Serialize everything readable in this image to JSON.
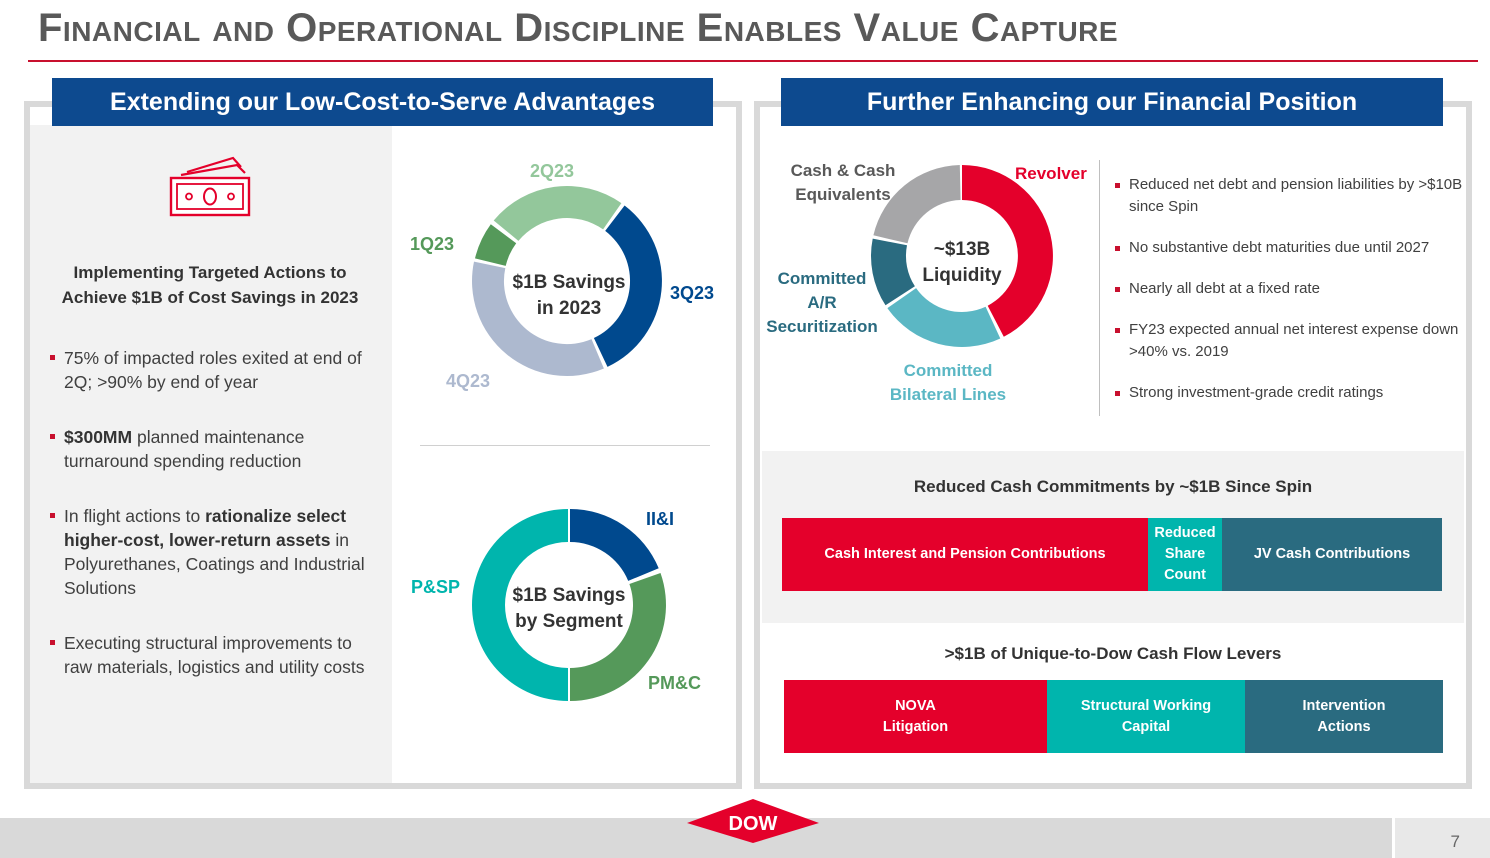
{
  "title": "Financial and Operational Discipline Enables Value Capture",
  "colors": {
    "red": "#e4002b",
    "teal": "#00b5ad",
    "darkTeal": "#2a6b80",
    "navy": "#0d4a8f",
    "lightGreen": "#93c79b",
    "green": "#55995a",
    "grayBlue": "#adb9cf",
    "gray": "#a6a6a8",
    "blue": "#00498e"
  },
  "left": {
    "header": "Extending our Low-Cost-to-Serve Advantages",
    "icon": "money-icon",
    "heading_line1": "Implementing Targeted Actions to",
    "heading_line2": "Achieve $1B of Cost Savings in 2023",
    "bullets": [
      {
        "pre": "75% of impacted roles exited at end of 2Q; >90% by end of year",
        "bold": "",
        "post": ""
      },
      {
        "pre": "",
        "bold": "$300MM",
        "post": " planned maintenance turnaround spending reduction"
      },
      {
        "pre": "In flight actions to ",
        "bold": "rationalize select higher-cost, lower-return assets",
        "post": " in Polyurethanes, Coatings and Industrial Solutions"
      },
      {
        "pre": "Executing structural improvements to raw materials, logistics and utility costs",
        "bold": "",
        "post": ""
      }
    ],
    "donut1": {
      "center_line1": "$1B Savings",
      "center_line2": "in 2023",
      "labels": {
        "q1": "1Q23",
        "q2": "2Q23",
        "q3": "3Q23",
        "q4": "4Q23"
      }
    },
    "donut2": {
      "center_line1": "$1B Savings",
      "center_line2": "by Segment",
      "labels": {
        "ii": "II&I",
        "pmc": "PM&C",
        "psp": "P&SP"
      }
    }
  },
  "right": {
    "header": "Further Enhancing our Financial Position",
    "donut": {
      "center_line1": "~$13B",
      "center_line2": "Liquidity",
      "labels": {
        "revolver": "Revolver",
        "cash1": "Cash & Cash",
        "cash2": "Equivalents",
        "ar1": "Committed",
        "ar2": "A/R",
        "ar3": "Securitization",
        "bl1": "Committed",
        "bl2": "Bilateral Lines"
      }
    },
    "bullets": [
      "Reduced net debt and pension liabilities by >$10B since Spin",
      "No substantive debt maturities due until 2027",
      "Nearly all debt at a fixed rate",
      "FY23 expected annual net interest expense down >40% vs. 2019",
      "Strong investment-grade credit ratings"
    ],
    "commitments": {
      "title": "Reduced Cash Commitments by ~$1B Since Spin",
      "seg1": "Cash Interest and Pension Contributions",
      "seg2": "Reduced Share Count",
      "seg3": "JV Cash Contributions"
    },
    "levers": {
      "title": ">$1B of Unique-to-Dow Cash Flow Levers",
      "seg1": "NOVA Litigation",
      "seg2": "Structural Working Capital",
      "seg3": "Intervention Actions"
    }
  },
  "footer": {
    "logo": "DOW",
    "page": "7"
  }
}
